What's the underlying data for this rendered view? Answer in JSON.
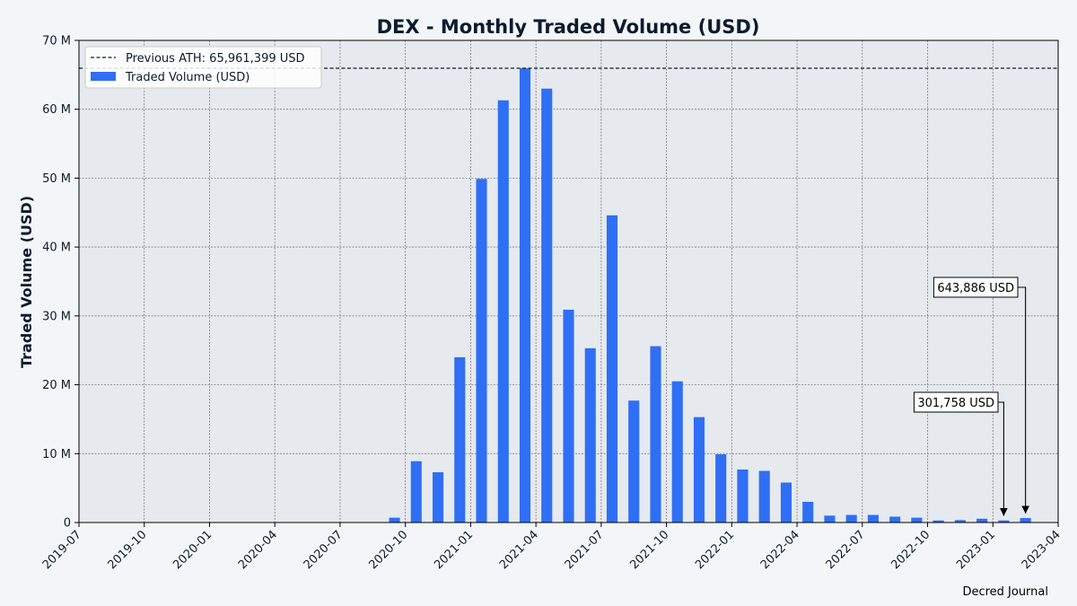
{
  "chart_data": {
    "type": "bar",
    "title": "DEX - Monthly Traded Volume (USD)",
    "xlabel": "",
    "ylabel": "Traded Volume (USD)",
    "ylim": [
      0,
      70000000
    ],
    "y_ticks": [
      "0",
      "10 M",
      "20 M",
      "30 M",
      "40 M",
      "50 M",
      "60 M",
      "70 M"
    ],
    "x_ticks": [
      "2019-07",
      "2019-10",
      "2020-01",
      "2020-04",
      "2020-07",
      "2020-10",
      "2021-01",
      "2021-04",
      "2021-07",
      "2021-10",
      "2022-01",
      "2022-04",
      "2022-07",
      "2022-10",
      "2023-01",
      "2023-04"
    ],
    "x_range": [
      "2019-07",
      "2023-04"
    ],
    "grid": true,
    "legend_position": "top-left",
    "series": [
      {
        "name": "Traded Volume (USD)",
        "color": "#2f6ff5",
        "points": [
          {
            "x": "2020-09",
            "y": 700000
          },
          {
            "x": "2020-10",
            "y": 8900000
          },
          {
            "x": "2020-11",
            "y": 7300000
          },
          {
            "x": "2020-12",
            "y": 24000000
          },
          {
            "x": "2021-01",
            "y": 49900000
          },
          {
            "x": "2021-02",
            "y": 61300000
          },
          {
            "x": "2021-03",
            "y": 65961399
          },
          {
            "x": "2021-04",
            "y": 63000000
          },
          {
            "x": "2021-05",
            "y": 30900000
          },
          {
            "x": "2021-06",
            "y": 25300000
          },
          {
            "x": "2021-07",
            "y": 44600000
          },
          {
            "x": "2021-08",
            "y": 17700000
          },
          {
            "x": "2021-09",
            "y": 25600000
          },
          {
            "x": "2021-10",
            "y": 20500000
          },
          {
            "x": "2021-11",
            "y": 15300000
          },
          {
            "x": "2021-12",
            "y": 9900000
          },
          {
            "x": "2022-01",
            "y": 7700000
          },
          {
            "x": "2022-02",
            "y": 7500000
          },
          {
            "x": "2022-03",
            "y": 5800000
          },
          {
            "x": "2022-04",
            "y": 3000000
          },
          {
            "x": "2022-05",
            "y": 1000000
          },
          {
            "x": "2022-06",
            "y": 1100000
          },
          {
            "x": "2022-07",
            "y": 1100000
          },
          {
            "x": "2022-08",
            "y": 850000
          },
          {
            "x": "2022-09",
            "y": 700000
          },
          {
            "x": "2022-10",
            "y": 300000
          },
          {
            "x": "2022-11",
            "y": 350000
          },
          {
            "x": "2022-12",
            "y": 550000
          },
          {
            "x": "2023-01",
            "y": 301758
          },
          {
            "x": "2023-02",
            "y": 643886
          }
        ]
      }
    ],
    "reference_line": {
      "label": "Previous ATH: 65,961,399 USD",
      "value": 65961399,
      "color": "#0d1b2e"
    },
    "annotations": [
      {
        "text": "643,886 USD",
        "x": "2023-02",
        "y": 643886
      },
      {
        "text": "301,758 USD",
        "x": "2023-01",
        "y": 301758
      }
    ],
    "credit": "Decred Journal",
    "colors": {
      "page_background": "#f3f6f8",
      "plot_background": "#e6eaee",
      "bar": "#2f6ff5",
      "text": "#0d1b2e"
    }
  }
}
